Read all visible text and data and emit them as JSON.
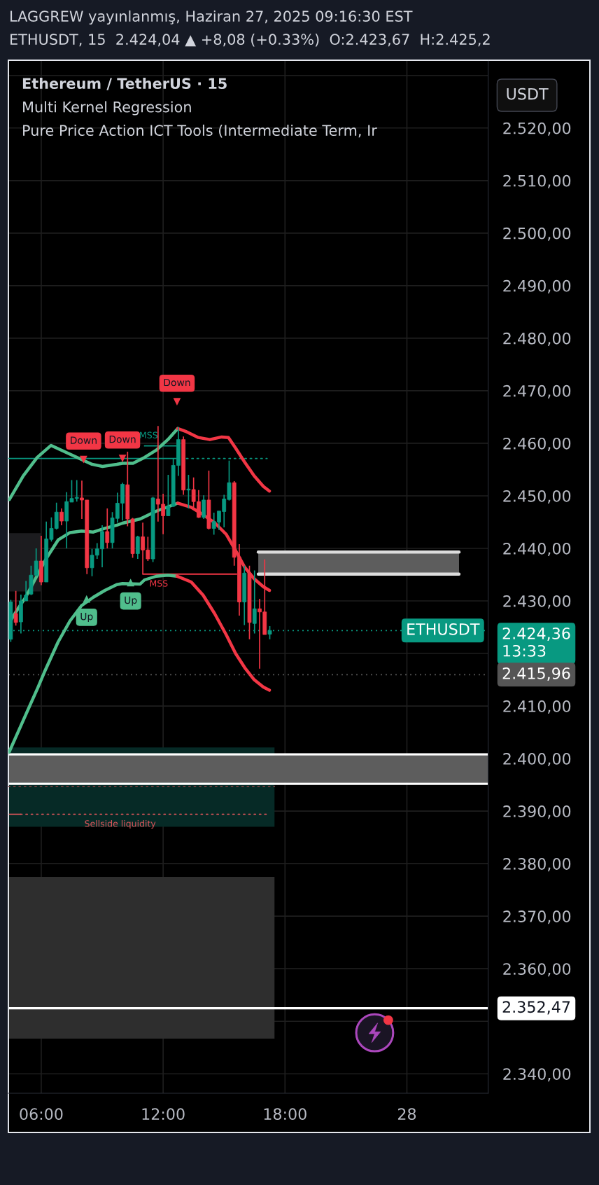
{
  "chart_data": {
    "type": "candlestick",
    "title": "LAGGREW yayınlanmış, Haziran 27, 2025 09:16:30 EST",
    "subtitle": "ETHUSDT, 15  2.424,04 ▲ +8,08 (+0.33%)  O:2.423,67  H:2.425,2",
    "ylabel": "USDT",
    "x": [
      "2025-06-27T04:30",
      "2025-06-27T04:45",
      "2025-06-27T05:00",
      "2025-06-27T05:15",
      "2025-06-27T05:30",
      "2025-06-27T05:45",
      "2025-06-27T06:00",
      "2025-06-27T06:15",
      "2025-06-27T06:30",
      "2025-06-27T06:45",
      "2025-06-27T07:00",
      "2025-06-27T07:15",
      "2025-06-27T07:30",
      "2025-06-27T07:45",
      "2025-06-27T08:00",
      "2025-06-27T08:15",
      "2025-06-27T08:30",
      "2025-06-27T08:45",
      "2025-06-27T09:00",
      "2025-06-27T09:15",
      "2025-06-27T09:30",
      "2025-06-27T09:45",
      "2025-06-27T10:00",
      "2025-06-27T10:15",
      "2025-06-27T10:30",
      "2025-06-27T10:45",
      "2025-06-27T11:00",
      "2025-06-27T11:15",
      "2025-06-27T11:30",
      "2025-06-27T11:45",
      "2025-06-27T12:00",
      "2025-06-27T12:15",
      "2025-06-27T12:30",
      "2025-06-27T12:45",
      "2025-06-27T13:00",
      "2025-06-27T13:15",
      "2025-06-27T13:30",
      "2025-06-27T13:45",
      "2025-06-27T14:00",
      "2025-06-27T14:15",
      "2025-06-27T14:30",
      "2025-06-27T14:45",
      "2025-06-27T15:00",
      "2025-06-27T15:15",
      "2025-06-27T15:30",
      "2025-06-27T15:45",
      "2025-06-27T16:00",
      "2025-06-27T16:15",
      "2025-06-27T16:30",
      "2025-06-27T16:45",
      "2025-06-27T17:00",
      "2025-06-27T17:15"
    ],
    "ohlc": [
      [
        2422.7,
        2430.2,
        2422.2,
        2429.8
      ],
      [
        2427.6,
        2431.9,
        2425.3,
        2425.9
      ],
      [
        2426.0,
        2431.2,
        2423.8,
        2430.0
      ],
      [
        2430.0,
        2433.8,
        2430.0,
        2431.1
      ],
      [
        2431.3,
        2436.7,
        2431.1,
        2434.9
      ],
      [
        2434.9,
        2440.0,
        2434.7,
        2437.6
      ],
      [
        2437.6,
        2442.4,
        2433.0,
        2433.6
      ],
      [
        2433.6,
        2445.1,
        2433.6,
        2441.8
      ],
      [
        2441.7,
        2445.9,
        2441.3,
        2443.8
      ],
      [
        2443.8,
        2448.7,
        2443.6,
        2446.9
      ],
      [
        2446.9,
        2447.6,
        2444.4,
        2445.2
      ],
      [
        2445.2,
        2450.7,
        2440.0,
        2448.9
      ],
      [
        2448.8,
        2453.0,
        2448.8,
        2449.5
      ],
      [
        2449.5,
        2453.0,
        2448.9,
        2449.7
      ],
      [
        2449.6,
        2452.9,
        2445.6,
        2449.2
      ],
      [
        2449.2,
        2449.2,
        2435.1,
        2436.3
      ],
      [
        2436.3,
        2439.9,
        2434.7,
        2438.7
      ],
      [
        2438.7,
        2441.0,
        2438.0,
        2439.9
      ],
      [
        2439.9,
        2444.4,
        2436.4,
        2443.2
      ],
      [
        2443.2,
        2447.6,
        2440.0,
        2441.1
      ],
      [
        2441.1,
        2446.9,
        2440.0,
        2445.8
      ],
      [
        2445.7,
        2450.6,
        2444.9,
        2448.6
      ],
      [
        2448.6,
        2452.5,
        2445.3,
        2452.2
      ],
      [
        2452.1,
        2458.4,
        2444.2,
        2445.6
      ],
      [
        2445.6,
        2445.8,
        2438.2,
        2439.0
      ],
      [
        2439.0,
        2442.4,
        2438.0,
        2442.2
      ],
      [
        2442.2,
        2444.9,
        2435.1,
        2439.7
      ],
      [
        2439.7,
        2442.2,
        2437.6,
        2438.0
      ],
      [
        2438.0,
        2449.8,
        2437.4,
        2449.6
      ],
      [
        2449.4,
        2463.3,
        2445.1,
        2448.4
      ],
      [
        2448.4,
        2450.4,
        2442.7,
        2446.2
      ],
      [
        2446.2,
        2454.0,
        2446.2,
        2448.0
      ],
      [
        2448.0,
        2457.1,
        2447.9,
        2455.8
      ],
      [
        2455.8,
        2463.1,
        2453.8,
        2460.7
      ],
      [
        2460.7,
        2461.3,
        2450.2,
        2451.1
      ],
      [
        2451.1,
        2454.0,
        2447.6,
        2451.3
      ],
      [
        2451.2,
        2453.5,
        2447.8,
        2448.9
      ],
      [
        2448.9,
        2451.1,
        2445.8,
        2445.9
      ],
      [
        2445.9,
        2450.1,
        2445.6,
        2449.2
      ],
      [
        2449.2,
        2454.8,
        2443.6,
        2443.8
      ],
      [
        2443.8,
        2446.8,
        2442.6,
        2445.1
      ],
      [
        2445.0,
        2447.1,
        2443.5,
        2447.1
      ],
      [
        2447.0,
        2450.2,
        2444.0,
        2449.4
      ],
      [
        2449.3,
        2456.7,
        2449.1,
        2452.5
      ],
      [
        2452.5,
        2452.8,
        2436.7,
        2438.3
      ],
      [
        2438.3,
        2440.8,
        2427.2,
        2429.8
      ],
      [
        2429.8,
        2436.7,
        2425.4,
        2435.3
      ],
      [
        2435.3,
        2436.7,
        2422.7,
        2425.9
      ],
      [
        2425.7,
        2435.8,
        2423.8,
        2428.5
      ],
      [
        2428.5,
        2430.4,
        2417.1,
        2427.9
      ],
      [
        2427.9,
        2437.9,
        2423.6,
        2423.6
      ],
      [
        2423.67,
        2425.2,
        2422.7,
        2424.36
      ]
    ],
    "colors": [
      "#089981",
      "#f23645",
      "#089981",
      "#089981",
      "#089981",
      "#089981",
      "#f23645",
      "#089981",
      "#089981",
      "#089981",
      "#f23645",
      "#089981",
      "#089981",
      "#089981",
      "#f23645",
      "#f23645",
      "#089981",
      "#089981",
      "#089981",
      "#f23645",
      "#089981",
      "#089981",
      "#089981",
      "#f23645",
      "#f23645",
      "#089981",
      "#f23645",
      "#f23645",
      "#089981",
      "#f23645",
      "#f23645",
      "#089981",
      "#089981",
      "#089981",
      "#f23645",
      "#089981",
      "#f23645",
      "#f23645",
      "#089981",
      "#f23645",
      "#089981",
      "#089981",
      "#089981",
      "#089981",
      "#f23645",
      "#f23645",
      "#089981",
      "#f23645",
      "#089981",
      "#f23645",
      "#f23645",
      "#089981"
    ],
    "series": [
      {
        "type": "line",
        "x": [
          "2025-06-27T04:23",
          "2025-06-27T05:59"
        ],
        "values": [
          null,
          null
        ],
        "upper": [
          2442.9,
          2442.9
        ],
        "lower": [
          2431.8,
          2431.8
        ],
        "color": "#1c1c1f"
      },
      {
        "type": "line",
        "x": [
          "2025-06-27T04:23",
          "2025-06-27T17:29"
        ],
        "values": [
          null,
          null
        ],
        "upper": [
          2402.1,
          2402.1
        ],
        "lower": [
          2387.0,
          2387.0
        ],
        "color": "#062a26"
      },
      {
        "type": "line",
        "x": [
          "2025-06-27T04:23",
          "2025-06-27T17:29"
        ],
        "values": [
          null,
          null
        ],
        "upper": [
          2377.5,
          2377.5
        ],
        "lower": [
          2346.7,
          2346.7
        ],
        "color": "#2e2e2e"
      },
      {
        "type": "line",
        "x": [
          "2025-06-27T16:41",
          "2025-06-28T02:34"
        ],
        "values": [
          null,
          null
        ],
        "upper": [
          2439.3,
          2439.3
        ],
        "lower": [
          2435.1,
          2435.1
        ],
        "color": "#5d5d5d"
      },
      {
        "type": "line",
        "x": [
          "2025-06-27T16:41",
          "2025-06-27T21:37",
          "2025-06-28T02:34"
        ],
        "values": [
          2439.3,
          2439.3,
          2439.3
        ],
        "color": "#dcdcdc"
      },
      {
        "type": "line",
        "x": [
          "2025-06-27T16:41",
          "2025-06-27T21:37",
          "2025-06-28T02:34"
        ],
        "values": [
          2435.1,
          2435.1,
          2435.1
        ],
        "color": "#dcdcdc"
      },
      {
        "type": "line",
        "x": [
          "2025-06-27T04:26",
          "2025-06-27T05:07",
          "2025-06-27T05:48",
          "2025-06-27T06:29",
          "2025-06-27T08:30",
          "2025-06-27T09:01",
          "2025-06-27T09:43",
          "2025-06-27T10:00",
          "2025-06-27T10:31",
          "2025-06-27T11:05",
          "2025-06-27T11:40",
          "2025-06-27T12:14",
          "2025-06-27T12:43"
        ],
        "values": [
          2449.3,
          2453.8,
          2457.3,
          2459.6,
          2456.0,
          2455.6,
          2456.0,
          2456.2,
          2456.2,
          2457.3,
          2458.7,
          2460.7,
          2462.8
        ],
        "color": "#50be8c"
      },
      {
        "type": "line",
        "x": [
          "2025-06-27T12:43",
          "2025-06-27T13:09",
          "2025-06-27T13:44",
          "2025-06-27T14:18",
          "2025-06-27T14:53",
          "2025-06-27T15:13",
          "2025-06-27T15:34",
          "2025-06-27T16:01",
          "2025-06-27T16:29",
          "2025-06-27T16:56",
          "2025-06-27T17:14"
        ],
        "values": [
          2462.8,
          2462.2,
          2461.1,
          2460.7,
          2461.2,
          2461.1,
          2459.1,
          2456.4,
          2453.8,
          2451.8,
          2450.9
        ],
        "color": "#f23645"
      },
      {
        "type": "line",
        "x": [
          "2025-06-27T04:29",
          "2025-06-27T04:53",
          "2025-06-27T05:14",
          "2025-06-27T05:41",
          "2025-06-27T06:16",
          "2025-06-27T06:50",
          "2025-06-27T07:25",
          "2025-06-27T07:59",
          "2025-06-27T08:34",
          "2025-06-27T09:08",
          "2025-06-27T09:43",
          "2025-06-27T10:00",
          "2025-06-27T10:52",
          "2025-06-27T11:05",
          "2025-06-27T11:40",
          "2025-06-27T12:14",
          "2025-06-27T12:43"
        ],
        "values": [
          2426.2,
          2428.7,
          2430.7,
          2434.0,
          2438.2,
          2441.6,
          2443.0,
          2443.3,
          2443.1,
          2443.8,
          2444.4,
          2444.8,
          2445.6,
          2446.0,
          2447.1,
          2447.9,
          2448.6
        ],
        "color": "#50be8c"
      },
      {
        "type": "line",
        "x": [
          "2025-06-27T12:43",
          "2025-06-27T13:23",
          "2025-06-27T13:58",
          "2025-06-27T14:32",
          "2025-06-27T15:06",
          "2025-06-27T15:34",
          "2025-06-27T16:01",
          "2025-06-27T16:29",
          "2025-06-27T16:56",
          "2025-06-27T17:14"
        ],
        "values": [
          2448.6,
          2447.8,
          2446.4,
          2444.9,
          2442.7,
          2439.6,
          2436.4,
          2434.2,
          2432.7,
          2432.0
        ],
        "color": "#f23645"
      },
      {
        "type": "line",
        "x": [
          "2025-06-27T04:25",
          "2025-06-27T05:05",
          "2025-06-27T05:50",
          "2025-06-27T06:09",
          "2025-06-27T06:50",
          "2025-06-27T07:25",
          "2025-06-27T07:59",
          "2025-06-27T08:34",
          "2025-06-27T09:08",
          "2025-06-27T09:43",
          "2025-06-27T10:00",
          "2025-06-27T10:52",
          "2025-06-27T11:05",
          "2025-06-27T11:40",
          "2025-06-27T12:14",
          "2025-06-27T12:41"
        ],
        "values": [
          2401.2,
          2407.0,
          2413.5,
          2416.4,
          2422.2,
          2426.2,
          2429.1,
          2430.7,
          2432.0,
          2433.1,
          2433.3,
          2433.2,
          2434.0,
          2434.7,
          2434.9,
          2434.7
        ],
        "color": "#50be8c"
      },
      {
        "type": "line",
        "x": [
          "2025-06-27T12:41",
          "2025-06-27T13:23",
          "2025-06-27T13:58",
          "2025-06-27T14:32",
          "2025-06-27T15:06",
          "2025-06-27T15:34",
          "2025-06-27T16:01",
          "2025-06-27T16:29",
          "2025-06-27T16:56",
          "2025-06-27T17:14"
        ],
        "values": [
          2434.7,
          2433.6,
          2431.1,
          2427.6,
          2423.6,
          2420.0,
          2417.3,
          2415.0,
          2413.6,
          2413.0
        ],
        "color": "#f23645"
      },
      {
        "type": "line",
        "x": [
          "2025-06-27T04:23",
          "2025-06-27T12:38"
        ],
        "values": [
          2457.1,
          2457.1
        ],
        "color": "#089981"
      },
      {
        "type": "line",
        "x": [
          "2025-06-27T13:09",
          "2025-06-27T17:07"
        ],
        "values": [
          2457.1,
          2457.1
        ],
        "color": "#089981",
        "line_style": "dotted"
      },
      {
        "type": "line",
        "x": [
          "2025-06-27T11:05",
          "2025-06-27T12:38"
        ],
        "values": [
          2459.5,
          2459.5
        ],
        "color": "#089981"
      },
      {
        "type": "line",
        "x": [
          "2025-06-27T11:00",
          "2025-06-27T15:37"
        ],
        "values": [
          2435.1,
          2435.1
        ],
        "color": "#f23645"
      },
      {
        "type": "line",
        "x": [
          "2025-06-27T04:26",
          "2025-06-27T04:59"
        ],
        "values": [
          2389.4,
          2389.4
        ],
        "color": "#e0565b"
      },
      {
        "type": "line",
        "x": [
          "2025-06-27T04:59",
          "2025-06-27T17:13"
        ],
        "values": [
          2389.4,
          2389.4
        ],
        "color": "#e0565b",
        "line_style": "dotted"
      },
      {
        "type": "line",
        "x": [
          "2025-06-27T04:23",
          "2025-06-27T17:29"
        ],
        "values": [
          2394.7,
          2394.7
        ],
        "color": "#7a4040",
        "line_style": "dotted"
      },
      {
        "type": "scatter",
        "name": "Down",
        "x": [
          "2025-06-27T08:05",
          "2025-06-27T10:00",
          "2025-06-27T12:41"
        ],
        "values": [
          2456.9,
          2457.1,
          2467.9
        ],
        "color": "#f23645",
        "marker": "triangle"
      },
      {
        "type": "scatter",
        "name": "Up",
        "x": [
          "2025-06-27T08:14",
          "2025-06-27T10:24"
        ],
        "values": [
          2430.4,
          2433.5
        ],
        "color": "#50be8c",
        "marker": "triangle"
      }
    ],
    "bands": [
      {
        "axis": "y",
        "from": 2395.4,
        "to": 2400.6,
        "color": "#5d5d5d"
      }
    ],
    "ref_lines": [
      {
        "axis": "y",
        "value": 2400.8,
        "color": "#ffffff",
        "line_style": "solid"
      },
      {
        "axis": "y",
        "value": 2395.2,
        "color": "#ffffff",
        "line_style": "solid"
      },
      {
        "axis": "y",
        "value": 2424.36,
        "label": "2.424,36\n13:33",
        "color": "#089981",
        "line_style": "dotted"
      },
      {
        "axis": "y",
        "value": 2415.96,
        "label": "2.415,96",
        "color": "#555555",
        "line_style": "dotted"
      },
      {
        "axis": "y",
        "value": 2352.47,
        "label": "2.352,47",
        "color": "#ffffff",
        "line_style": "solid"
      }
    ],
    "annotations": [
      "Ethereum / TetherUS · 15",
      "Multi Kernel Regression",
      "Pure Price Action ICT Tools (Intermediate Term, Ir",
      {
        "text": "MSS",
        "x": "2025-06-27T11:17",
        "y": 2459.5
      },
      {
        "text": "MSS",
        "x": "2025-06-27T11:47",
        "y": 2435.1
      },
      {
        "text": "Sellside liquidity",
        "x": "2025-06-27T09:53",
        "y": 2389.4
      },
      {
        "text": "ETHUSDT",
        "x": "2025-06-28T01:46",
        "y": 2424.36
      }
    ],
    "xlim": [
      "2025-06-27T04:23",
      "2025-06-28T04:00"
    ],
    "ylim": [
      2336.3,
      2532.9
    ],
    "xticks": [
      {
        "value": "2025-06-27T06:00",
        "label": "06:00"
      },
      {
        "value": "2025-06-27T12:00",
        "label": "12:00"
      },
      {
        "value": "2025-06-27T18:00",
        "label": "18:00"
      },
      {
        "value": "2025-06-28T00:00",
        "label": "28"
      }
    ],
    "yticks": [
      {
        "value": 2340,
        "label": "2.340,00"
      },
      {
        "value": 2350,
        "label": null
      },
      {
        "value": 2360,
        "label": "2.360,00"
      },
      {
        "value": 2370,
        "label": "2.370,00"
      },
      {
        "value": 2380,
        "label": "2.380,00"
      },
      {
        "value": 2390,
        "label": "2.390,00"
      },
      {
        "value": 2400,
        "label": "2.400,00"
      },
      {
        "value": 2410,
        "label": "2.410,00"
      },
      {
        "value": 2420,
        "label": null
      },
      {
        "value": 2430,
        "label": "2.430,00"
      },
      {
        "value": 2440,
        "label": "2.440,00"
      },
      {
        "value": 2450,
        "label": "2.450,00"
      },
      {
        "value": 2460,
        "label": "2.460,00"
      },
      {
        "value": 2470,
        "label": "2.470,00"
      },
      {
        "value": 2480,
        "label": "2.480,00"
      },
      {
        "value": 2490,
        "label": "2.490,00"
      },
      {
        "value": 2500,
        "label": "2.500,00"
      },
      {
        "value": 2510,
        "label": "2.510,00"
      },
      {
        "value": 2520,
        "label": "2.520,00"
      },
      {
        "value": 2530,
        "label": null
      }
    ],
    "grid": true
  }
}
